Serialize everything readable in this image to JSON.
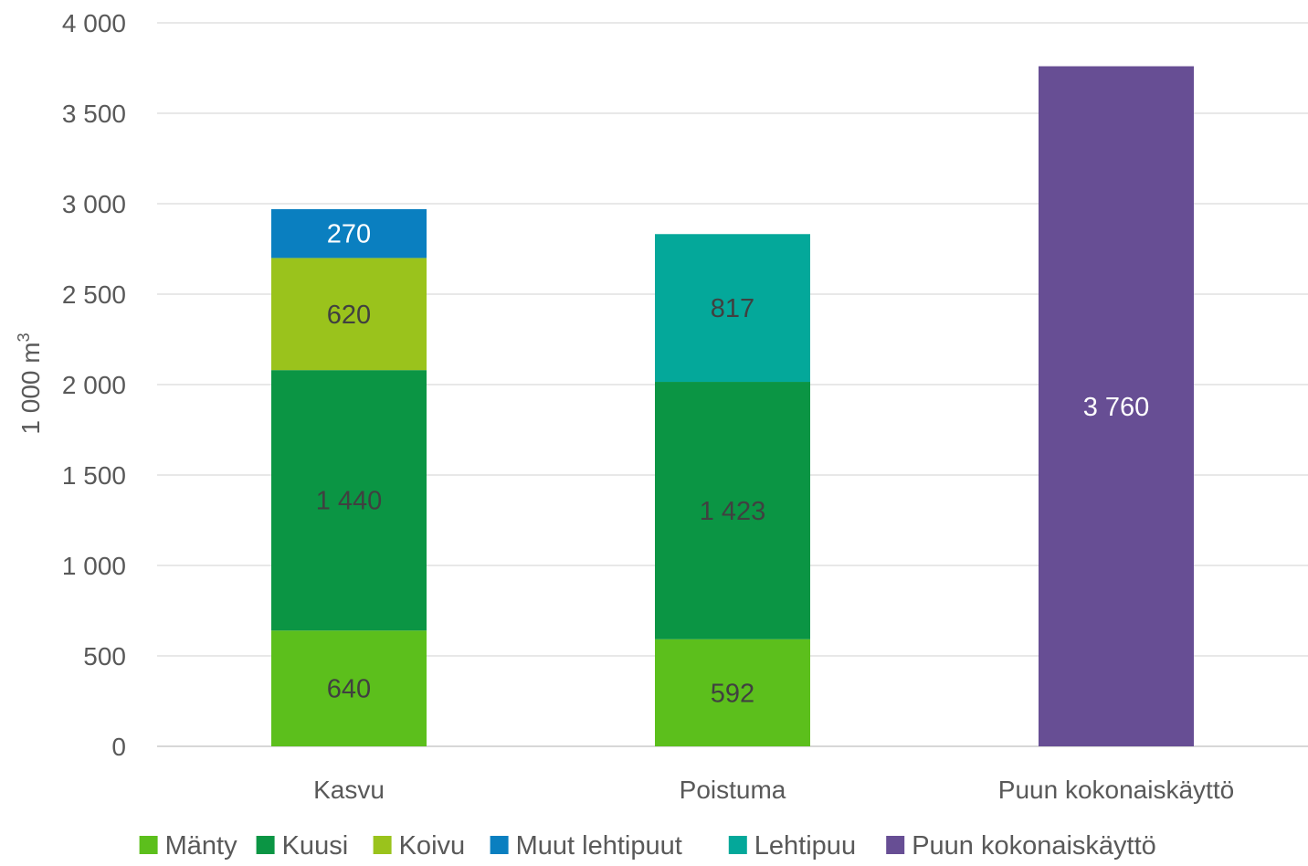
{
  "chart_data": {
    "type": "bar",
    "stacked": true,
    "categories": [
      "Kasvu",
      "Poistuma",
      "Puun kokonaiskäyttö"
    ],
    "ylabel_base": "1 000 m",
    "ylabel_sup": "3",
    "ylim": [
      0,
      4000
    ],
    "yticks": [
      0,
      500,
      1000,
      1500,
      2000,
      2500,
      3000,
      3500,
      4000
    ],
    "ytick_labels": [
      "0",
      "500",
      "1 000",
      "1 500",
      "2 000",
      "2 500",
      "3 000",
      "3 500",
      "4 000"
    ],
    "grid": true,
    "legend_position": "bottom",
    "series": [
      {
        "name": "Mänty",
        "color": "#5cbf1c",
        "label_color": "#404040",
        "values": [
          640,
          592,
          0
        ],
        "value_labels": [
          "640",
          "592",
          ""
        ]
      },
      {
        "name": "Kuusi",
        "color": "#0b9544",
        "label_color": "#404040",
        "values": [
          1440,
          1423,
          0
        ],
        "value_labels": [
          "1 440",
          "1 423",
          ""
        ]
      },
      {
        "name": "Koivu",
        "color": "#9ac31c",
        "label_color": "#404040",
        "values": [
          620,
          0,
          0
        ],
        "value_labels": [
          "620",
          "",
          ""
        ]
      },
      {
        "name": "Muut lehtipuut",
        "color": "#0a7fc0",
        "label_color": "#ffffff",
        "values": [
          270,
          0,
          0
        ],
        "value_labels": [
          "270",
          "",
          ""
        ]
      },
      {
        "name": "Lehtipuu",
        "color": "#04a89a",
        "label_color": "#404040",
        "values": [
          0,
          817,
          0
        ],
        "value_labels": [
          "",
          "817",
          ""
        ]
      },
      {
        "name": "Puun kokonaiskäyttö",
        "color": "#674e94",
        "label_color": "#ffffff",
        "values": [
          0,
          0,
          3760
        ],
        "value_labels": [
          "",
          "",
          "3 760"
        ]
      }
    ]
  }
}
